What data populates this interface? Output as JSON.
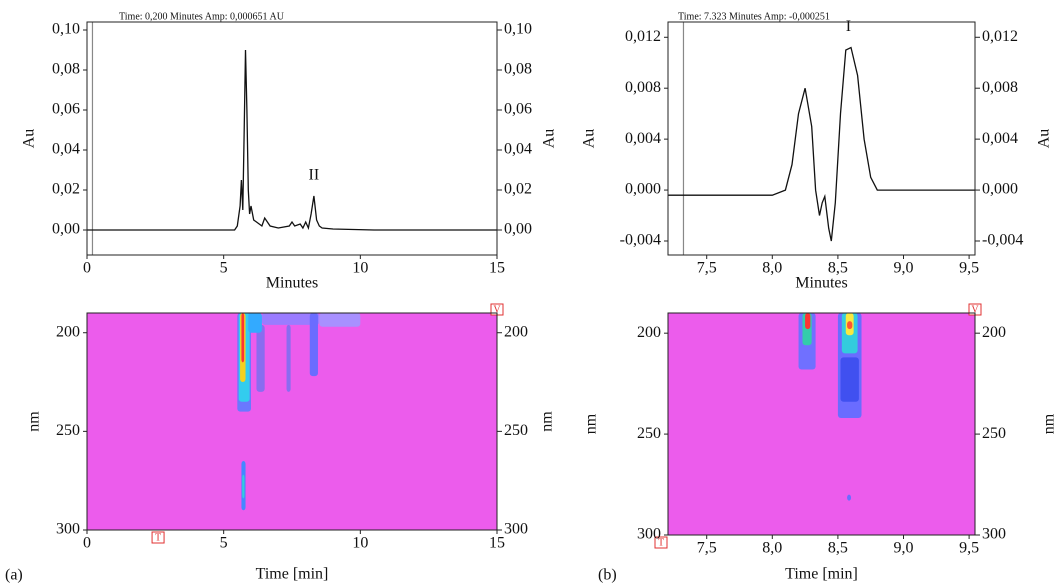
{
  "chart_data": [
    {
      "type": "line",
      "title": "Time: 0,200 Minutes Amp: 0,000651 AU",
      "xlabel": "Minutes",
      "ylabel": "Au",
      "panel": "(a)",
      "xlim": [
        0,
        15
      ],
      "ylim": [
        -0.0125,
        0.104
      ],
      "xticks": [
        0,
        5,
        10,
        15
      ],
      "yticks": [
        {
          "value": 0,
          "label": "0,00"
        },
        {
          "value": 0.02,
          "label": "0,02"
        },
        {
          "value": 0.04,
          "label": "0,04"
        },
        {
          "value": 0.06,
          "label": "0,06"
        },
        {
          "value": 0.08,
          "label": "0,08"
        },
        {
          "value": 0.1,
          "label": "0,10"
        }
      ],
      "cursor": 0.2,
      "color": "#111111",
      "annotations": [
        {
          "text": "II",
          "x": 8.3,
          "y": 0.027
        }
      ],
      "x": [
        0,
        5.4,
        5.5,
        5.6,
        5.65,
        5.7,
        5.75,
        5.8,
        5.85,
        5.9,
        5.95,
        6.0,
        6.1,
        6.2,
        6.4,
        6.5,
        6.7,
        7.0,
        7.4,
        7.5,
        7.6,
        7.8,
        7.9,
        8.0,
        8.1,
        8.2,
        8.3,
        8.4,
        8.5,
        8.6,
        9.0,
        10.5,
        15
      ],
      "values": [
        0,
        0,
        0.002,
        0.012,
        0.025,
        0.01,
        0.05,
        0.09,
        0.06,
        0.02,
        0.008,
        0.012,
        0.005,
        0.004,
        0.002,
        0.006,
        0.002,
        0.001,
        0.002,
        0.004,
        0.002,
        0.003,
        0.001,
        0.004,
        0.001,
        0.008,
        0.017,
        0.005,
        0.002,
        0.001,
        0.0005,
        0,
        0
      ]
    },
    {
      "type": "heatmap",
      "xlabel": "Time [min]",
      "ylabel": "nm",
      "markers": [
        "T",
        "V"
      ],
      "background": "#ec5cec",
      "xlim": [
        0,
        15
      ],
      "ylim": [
        300,
        190
      ],
      "xticks": [
        0,
        5,
        10,
        15
      ],
      "yticks": [
        200,
        250,
        300
      ],
      "regions": [
        {
          "x": [
            5.5,
            6.0
          ],
          "y": [
            190,
            240
          ],
          "color": "#6a78ff"
        },
        {
          "x": [
            6.4,
            8.5
          ],
          "y": [
            190,
            196
          ],
          "color": "#9a7cff"
        },
        {
          "x": [
            8.5,
            10.0
          ],
          "y": [
            190,
            197
          ],
          "color": "#a890ff"
        },
        {
          "x": [
            6.2,
            6.5
          ],
          "y": [
            196,
            230
          ],
          "color": "#8a6cf0"
        },
        {
          "x": [
            7.3,
            7.45
          ],
          "y": [
            196,
            230
          ],
          "color": "#8a6cf0"
        },
        {
          "x": [
            8.15,
            8.45
          ],
          "y": [
            190,
            222
          ],
          "color": "#6a6cff"
        },
        {
          "x": [
            5.55,
            5.95
          ],
          "y": [
            190,
            235
          ],
          "color": "#33ccee"
        },
        {
          "x": [
            5.9,
            6.4
          ],
          "y": [
            190,
            200
          ],
          "color": "#33aaff"
        },
        {
          "x": [
            5.6,
            5.8
          ],
          "y": [
            190,
            225
          ],
          "color": "#f4d020"
        },
        {
          "x": [
            5.65,
            5.75
          ],
          "y": [
            190,
            215
          ],
          "color": "#ff3333"
        },
        {
          "x": [
            5.65,
            5.8
          ],
          "y": [
            265,
            290
          ],
          "color": "#4488ff"
        },
        {
          "x": [
            5.68,
            5.76
          ],
          "y": [
            272,
            284
          ],
          "color": "#33ccdd"
        }
      ]
    },
    {
      "type": "line",
      "title": "Time: 7.323 Minutes Amp: -0,000251",
      "xlabel": "Minutes",
      "ylabel": "Au",
      "panel": "(b)",
      "xlim": [
        7.205,
        9.545
      ],
      "ylim": [
        -0.0051,
        0.0132
      ],
      "xticks": [
        {
          "value": 7.5,
          "label": "7,5"
        },
        {
          "value": 8,
          "label": "8,0"
        },
        {
          "value": 8.5,
          "label": "8,5"
        },
        {
          "value": 9,
          "label": "9,0"
        },
        {
          "value": 9.5,
          "label": "9,5"
        }
      ],
      "yticks": [
        {
          "value": -0.004,
          "label": "-0,004"
        },
        {
          "value": 0,
          "label": "0,000"
        },
        {
          "value": 0.004,
          "label": "0,004"
        },
        {
          "value": 0.008,
          "label": "0,008"
        },
        {
          "value": 0.012,
          "label": "0,012"
        }
      ],
      "cursor": 7.323,
      "color": "#111111",
      "annotations": [
        {
          "text": "I",
          "x": 8.58,
          "y": 0.0128
        }
      ],
      "x": [
        7.205,
        8.0,
        8.1,
        8.15,
        8.2,
        8.25,
        8.3,
        8.33,
        8.36,
        8.38,
        8.4,
        8.43,
        8.45,
        8.48,
        8.52,
        8.56,
        8.6,
        8.65,
        8.7,
        8.75,
        8.8,
        9.5,
        9.545
      ],
      "values": [
        -0.0004,
        -0.0004,
        0,
        0.002,
        0.006,
        0.008,
        0.005,
        0,
        -0.002,
        -0.001,
        -0.0005,
        -0.003,
        -0.004,
        -0.001,
        0.006,
        0.011,
        0.0112,
        0.009,
        0.004,
        0.001,
        0,
        0,
        0
      ]
    },
    {
      "type": "heatmap",
      "xlabel": "Time [min]",
      "ylabel": "nm",
      "markers": [
        "T",
        "V"
      ],
      "background": "#ec5cec",
      "xlim": [
        7.205,
        9.545
      ],
      "ylim": [
        300,
        190
      ],
      "xticks": [
        {
          "value": 7.5,
          "label": "7,5"
        },
        {
          "value": 8,
          "label": "8,0"
        },
        {
          "value": 8.5,
          "label": "8,5"
        },
        {
          "value": 9,
          "label": "9,0"
        },
        {
          "value": 9.5,
          "label": "9,5"
        }
      ],
      "yticks": [
        200,
        250,
        300
      ],
      "regions": [
        {
          "x": [
            8.2,
            8.33
          ],
          "y": [
            190,
            218
          ],
          "color": "#7070ff"
        },
        {
          "x": [
            8.5,
            8.68
          ],
          "y": [
            190,
            242
          ],
          "color": "#6a6cff"
        },
        {
          "x": [
            8.52,
            8.66
          ],
          "y": [
            212,
            234
          ],
          "color": "#4050f0"
        },
        {
          "x": [
            8.23,
            8.3
          ],
          "y": [
            190,
            206
          ],
          "color": "#33ccaa"
        },
        {
          "x": [
            8.25,
            8.29
          ],
          "y": [
            190,
            198
          ],
          "color": "#ff3333"
        },
        {
          "x": [
            8.53,
            8.65
          ],
          "y": [
            190,
            210
          ],
          "color": "#33ccdd"
        },
        {
          "x": [
            8.56,
            8.62
          ],
          "y": [
            190,
            201
          ],
          "color": "#f8e840"
        },
        {
          "x": [
            8.57,
            8.61
          ],
          "y": [
            194,
            198
          ],
          "color": "#ff5533"
        },
        {
          "x": [
            8.57,
            8.6
          ],
          "y": [
            280,
            283
          ],
          "color": "#6a6cff"
        }
      ]
    }
  ]
}
